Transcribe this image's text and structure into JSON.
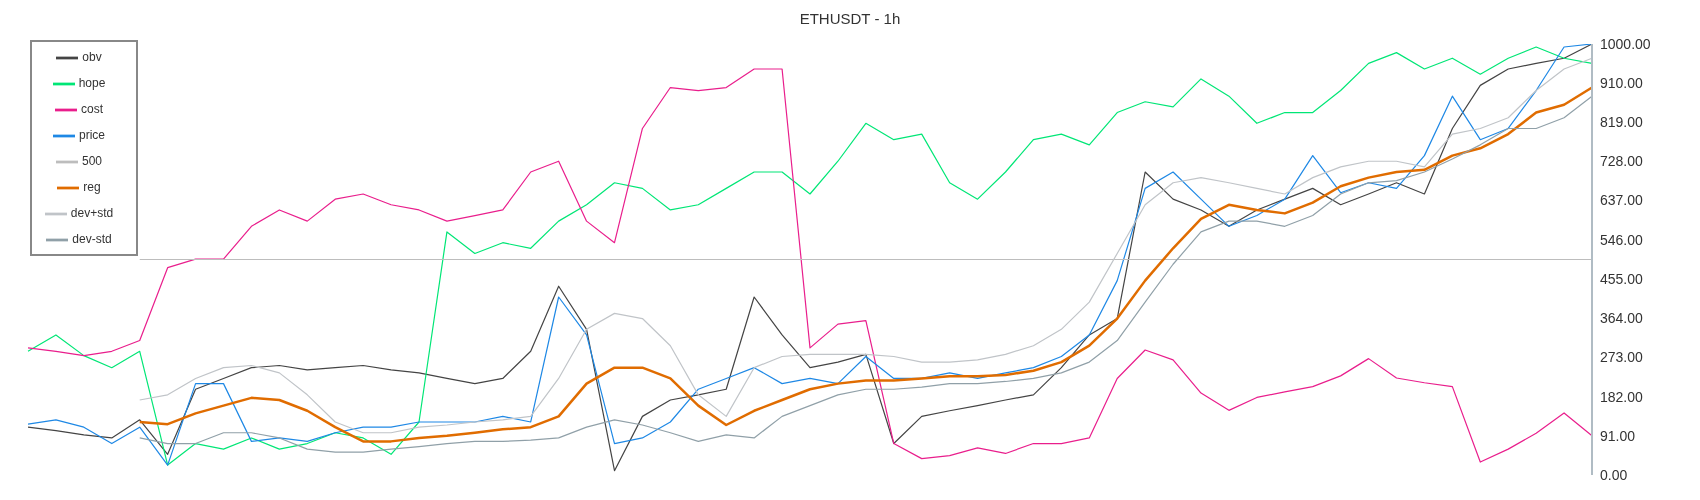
{
  "chart_data": {
    "type": "line",
    "title": "ETHUSDT - 1h",
    "categories": [
      null,
      null,
      null,
      null,
      null,
      null,
      null,
      null,
      null,
      null,
      null,
      null,
      null,
      null,
      null,
      null,
      null,
      null,
      null,
      null,
      null,
      null,
      null,
      null,
      null,
      null,
      null,
      null,
      null,
      null,
      null,
      null,
      null,
      null,
      null,
      null,
      null,
      null,
      null,
      null,
      null,
      null,
      null,
      null,
      null,
      null,
      null,
      null,
      null,
      null,
      null,
      null,
      null,
      null,
      null,
      null,
      null
    ],
    "series": [
      {
        "name": "obv",
        "color": "#444444",
        "values": [
          111,
          103,
          93,
          86,
          128,
          48,
          199,
          224,
          249,
          254,
          244,
          249,
          254,
          244,
          237,
          224,
          212,
          224,
          287,
          438,
          338,
          10,
          136,
          174,
          186,
          199,
          413,
          325,
          249,
          262,
          280,
          73,
          136,
          149,
          161,
          174,
          186,
          249,
          325,
          363,
          703,
          640,
          615,
          577,
          615,
          640,
          665,
          627,
          652,
          678,
          652,
          804,
          904,
          942,
          955,
          967,
          1000
        ]
      },
      {
        "name": "hope",
        "color": "#00e676",
        "values": [
          287,
          325,
          277,
          249,
          287,
          23,
          73,
          60,
          86,
          60,
          73,
          98,
          86,
          48,
          123,
          564,
          514,
          539,
          526,
          589,
          627,
          678,
          665,
          615,
          627,
          665,
          703,
          703,
          652,
          728,
          816,
          778,
          791,
          678,
          640,
          703,
          778,
          791,
          766,
          841,
          866,
          854,
          919,
          879,
          816,
          841,
          841,
          892,
          955,
          980,
          942,
          967,
          930,
          967,
          993,
          967,
          955
        ]
      },
      {
        "name": "cost",
        "color": "#e91e8c",
        "values": [
          295,
          287,
          277,
          287,
          312,
          481,
          501,
          501,
          577,
          615,
          589,
          640,
          652,
          627,
          615,
          589,
          602,
          615,
          703,
          728,
          589,
          539,
          804,
          899,
          892,
          899,
          942,
          942,
          295,
          350,
          358,
          73,
          38,
          45,
          63,
          50,
          73,
          73,
          86,
          224,
          290,
          267,
          190,
          150,
          180,
          193,
          205,
          230,
          270,
          225,
          214,
          205,
          30,
          60,
          97,
          144,
          91
        ]
      },
      {
        "name": "price",
        "color": "#1e88e5",
        "values": [
          118,
          128,
          111,
          73,
          111,
          23,
          212,
          212,
          78,
          86,
          78,
          98,
          111,
          111,
          123,
          123,
          123,
          136,
          123,
          413,
          325,
          73,
          86,
          123,
          199,
          224,
          249,
          212,
          224,
          212,
          275,
          224,
          224,
          237,
          224,
          237,
          249,
          275,
          325,
          451,
          665,
          703,
          640,
          577,
          602,
          640,
          741,
          655,
          678,
          665,
          741,
          879,
          778,
          804,
          892,
          993,
          1000
        ]
      },
      {
        "name": "500",
        "color": "#bdbdbd",
        "values": [
          null,
          null,
          null,
          null,
          500,
          500,
          500,
          500,
          500,
          500,
          500,
          500,
          500,
          500,
          500,
          500,
          500,
          500,
          500,
          500,
          500,
          500,
          500,
          500,
          500,
          500,
          500,
          500,
          500,
          500,
          500,
          500,
          500,
          500,
          500,
          500,
          500,
          500,
          500,
          500,
          500,
          500,
          500,
          500,
          500,
          500,
          500,
          500,
          500,
          500,
          500,
          500,
          500,
          500,
          500,
          500,
          500
        ]
      },
      {
        "name": "reg",
        "color": "#e06c00",
        "values": [
          null,
          null,
          null,
          null,
          123,
          118,
          143,
          161,
          179,
          174,
          149,
          111,
          78,
          78,
          86,
          91,
          98,
          106,
          111,
          136,
          212,
          249,
          249,
          224,
          161,
          116,
          149,
          174,
          199,
          212,
          219,
          219,
          224,
          229,
          229,
          232,
          242,
          262,
          300,
          363,
          451,
          526,
          594,
          627,
          615,
          607,
          632,
          670,
          690,
          703,
          708,
          741,
          758,
          791,
          841,
          859,
          899
        ]
      },
      {
        "name": "dev+std",
        "color": "#c0c4c8",
        "values": [
          null,
          null,
          null,
          null,
          174,
          186,
          224,
          249,
          254,
          237,
          186,
          123,
          98,
          98,
          111,
          116,
          123,
          128,
          136,
          224,
          338,
          375,
          363,
          300,
          186,
          136,
          249,
          275,
          280,
          280,
          280,
          275,
          262,
          262,
          267,
          280,
          300,
          338,
          401,
          514,
          627,
          678,
          690,
          678,
          665,
          652,
          690,
          715,
          728,
          728,
          715,
          791,
          804,
          829,
          892,
          942,
          967
        ]
      },
      {
        "name": "dev-std",
        "color": "#90a0a8",
        "values": [
          null,
          null,
          null,
          null,
          86,
          73,
          73,
          98,
          98,
          86,
          60,
          53,
          53,
          60,
          66,
          73,
          78,
          78,
          81,
          86,
          111,
          128,
          116,
          98,
          78,
          93,
          86,
          136,
          161,
          186,
          199,
          199,
          204,
          212,
          212,
          217,
          224,
          237,
          262,
          312,
          401,
          489,
          564,
          589,
          589,
          577,
          602,
          652,
          678,
          683,
          703,
          733,
          766,
          804,
          804,
          829,
          879
        ]
      }
    ],
    "ylim": [
      0,
      1000
    ],
    "yticks": [
      {
        "value": 0,
        "label": "0.00"
      },
      {
        "value": 91,
        "label": "91.00"
      },
      {
        "value": 182,
        "label": "182.00"
      },
      {
        "value": 273,
        "label": "273.00"
      },
      {
        "value": 364,
        "label": "364.00"
      },
      {
        "value": 455,
        "label": "455.00"
      },
      {
        "value": 546,
        "label": "546.00"
      },
      {
        "value": 637,
        "label": "637.00"
      },
      {
        "value": 728,
        "label": "728.00"
      },
      {
        "value": 819,
        "label": "819.00"
      },
      {
        "value": 910,
        "label": "910.00"
      },
      {
        "value": 1000,
        "label": "1000.00"
      }
    ],
    "grid": false,
    "legend": "top left",
    "marker": "none",
    "line_style": "solid"
  }
}
